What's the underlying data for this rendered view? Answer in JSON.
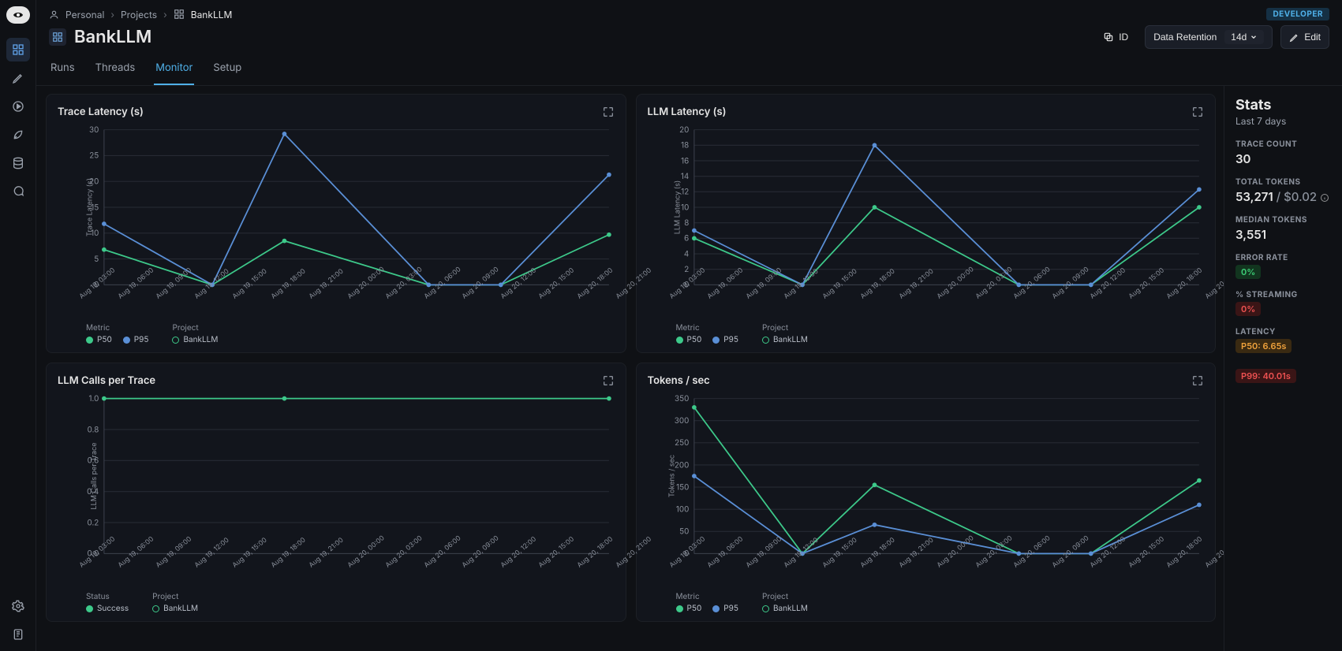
{
  "breadcrumbs": {
    "user": "Personal",
    "projects": "Projects",
    "name": "BankLLM"
  },
  "devBadge": "DEVELOPER",
  "title": "BankLLM",
  "actions": {
    "id": "ID",
    "retention_label": "Data Retention",
    "retention_value": "14d",
    "edit": "Edit"
  },
  "tabs": [
    "Runs",
    "Threads",
    "Monitor",
    "Setup"
  ],
  "activeTab": 2,
  "x_categories": [
    "Aug 19, 03:00",
    "Aug 19, 06:00",
    "Aug 19, 09:00",
    "Aug 19, 12:00",
    "Aug 19, 15:00",
    "Aug 19, 18:00",
    "Aug 19, 21:00",
    "Aug 20, 00:00",
    "Aug 20, 03:00",
    "Aug 20, 06:00",
    "Aug 20, 09:00",
    "Aug 20, 12:00",
    "Aug 20, 15:00",
    "Aug 20, 18:00",
    "Aug 20, 21:00"
  ],
  "colors": {
    "p50": "#3dc98a",
    "p95": "#5a8fd6",
    "project_ring": "#3dc98a",
    "grid": "#262a33",
    "axis": "#3a3f4a"
  },
  "charts": [
    {
      "id": "trace-latency",
      "title": "Trace Latency (s)",
      "ylabel": "Trace Latency (s)",
      "ymin": 0,
      "ymax": 30,
      "ystep": 5,
      "series": [
        {
          "name": "P50",
          "color": "#3dc98a",
          "values": [
            6.8,
            null,
            null,
            0,
            null,
            8.5,
            null,
            null,
            null,
            0,
            null,
            0,
            null,
            null,
            9.7
          ]
        },
        {
          "name": "P95",
          "color": "#5a8fd6",
          "values": [
            11.8,
            null,
            null,
            0,
            null,
            29.2,
            null,
            null,
            null,
            0,
            null,
            0,
            null,
            null,
            21.3
          ]
        }
      ],
      "legend": {
        "metric": [
          "P50",
          "P95"
        ],
        "project": [
          "BankLLM"
        ]
      }
    },
    {
      "id": "llm-latency",
      "title": "LLM Latency (s)",
      "ylabel": "LLM Latency (s)",
      "ymin": 0,
      "ymax": 20,
      "ystep": 2,
      "series": [
        {
          "name": "P50",
          "color": "#3dc98a",
          "values": [
            6.0,
            null,
            null,
            0,
            null,
            10.0,
            null,
            null,
            null,
            0,
            null,
            0,
            null,
            null,
            10.0
          ]
        },
        {
          "name": "P95",
          "color": "#5a8fd6",
          "values": [
            7.0,
            null,
            null,
            0,
            null,
            18.0,
            null,
            null,
            null,
            0,
            null,
            0,
            null,
            null,
            12.3
          ]
        }
      ],
      "legend": {
        "metric": [
          "P50",
          "P95"
        ],
        "project": [
          "BankLLM"
        ]
      }
    },
    {
      "id": "llm-calls",
      "title": "LLM Calls per Trace",
      "ylabel": "LLM Calls per Trace",
      "ymin": 0,
      "ymax": 1,
      "ystep": 0.2,
      "series": [
        {
          "name": "Success",
          "color": "#3dc98a",
          "values": [
            1,
            null,
            null,
            null,
            null,
            1,
            null,
            null,
            null,
            null,
            null,
            null,
            null,
            null,
            1
          ]
        }
      ],
      "legend": {
        "status": [
          "Success"
        ],
        "project": [
          "BankLLM"
        ]
      }
    },
    {
      "id": "tokens-sec",
      "title": "Tokens / sec",
      "ylabel": "Tokens / sec",
      "ymin": 0,
      "ymax": 350,
      "ystep": 50,
      "series": [
        {
          "name": "P50",
          "color": "#3dc98a",
          "values": [
            330,
            null,
            null,
            0,
            null,
            155,
            null,
            null,
            null,
            0,
            null,
            0,
            null,
            null,
            165
          ]
        },
        {
          "name": "P95",
          "color": "#5a8fd6",
          "values": [
            175,
            null,
            null,
            0,
            null,
            65,
            null,
            null,
            null,
            0,
            null,
            0,
            null,
            null,
            110
          ]
        }
      ],
      "legend": {
        "metric": [
          "P50",
          "P95"
        ],
        "project": [
          "BankLLM"
        ]
      }
    }
  ],
  "stats": {
    "heading": "Stats",
    "sub": "Last 7 days",
    "trace_count_label": "TRACE COUNT",
    "trace_count": "30",
    "total_tokens_label": "TOTAL TOKENS",
    "total_tokens": "53,271",
    "total_cost": "$0.02",
    "median_tokens_label": "MEDIAN TOKENS",
    "median_tokens": "3,551",
    "error_rate_label": "ERROR RATE",
    "error_rate": "0%",
    "streaming_label": "% STREAMING",
    "streaming": "0%",
    "latency_label": "LATENCY",
    "p50": "P50: 6.65s",
    "p99": "P99: 40.01s"
  }
}
